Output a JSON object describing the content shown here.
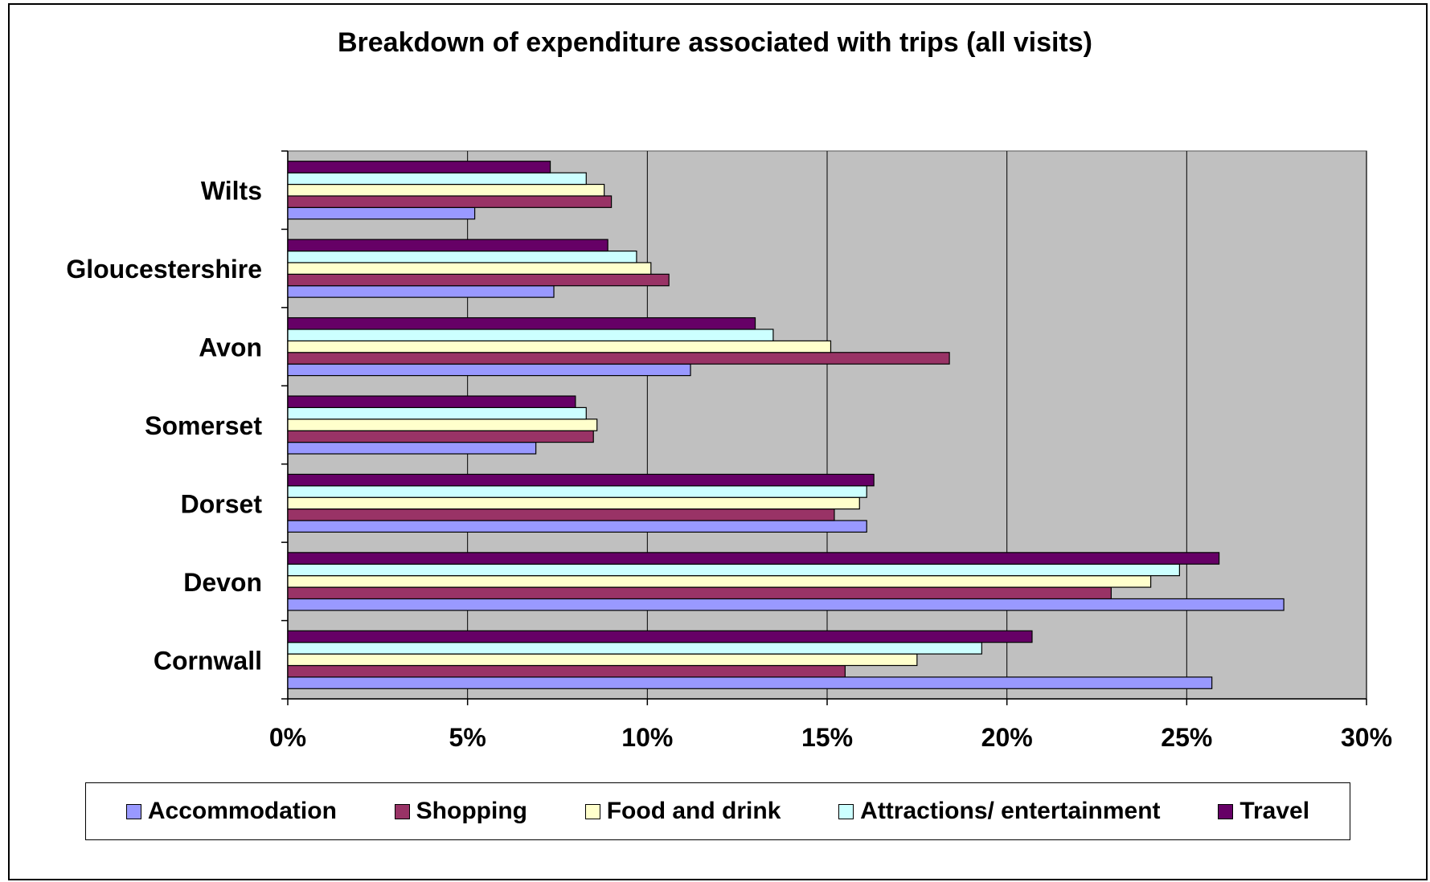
{
  "chart_data": {
    "type": "bar",
    "orientation": "horizontal",
    "title": "Breakdown of expenditure associated with trips (all visits)",
    "xlabel": "",
    "ylabel": "",
    "xlim": [
      0,
      30
    ],
    "x_ticks": [
      "0%",
      "5%",
      "10%",
      "15%",
      "20%",
      "25%",
      "30%"
    ],
    "grid": "vertical",
    "legend_position": "bottom",
    "categories": [
      "Cornwall",
      "Devon",
      "Dorset",
      "Somerset",
      "Avon",
      "Gloucestershire",
      "Wilts"
    ],
    "series": [
      {
        "name": "Accommodation",
        "color": "#9999ff",
        "values": [
          25.7,
          27.7,
          16.1,
          6.9,
          11.2,
          7.4,
          5.2
        ]
      },
      {
        "name": "Shopping",
        "color": "#993366",
        "values": [
          15.5,
          22.9,
          15.2,
          8.5,
          18.4,
          10.6,
          9.0
        ]
      },
      {
        "name": "Food and drink",
        "color": "#ffffcc",
        "values": [
          17.5,
          24.0,
          15.9,
          8.6,
          15.1,
          10.1,
          8.8
        ]
      },
      {
        "name": "Attractions/ entertainment",
        "color": "#ccffff",
        "values": [
          19.3,
          24.8,
          16.1,
          8.3,
          13.5,
          9.7,
          8.3
        ]
      },
      {
        "name": "Travel",
        "color": "#660066",
        "values": [
          20.7,
          25.9,
          16.3,
          8.0,
          13.0,
          8.9,
          7.3
        ]
      }
    ]
  }
}
